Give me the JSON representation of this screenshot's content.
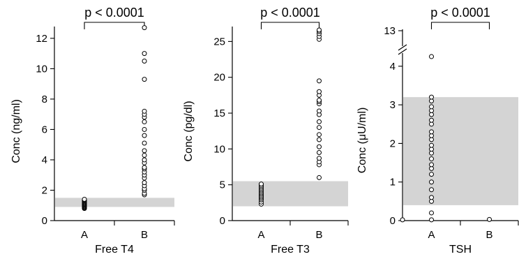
{
  "chart_data": [
    {
      "type": "scatter",
      "xlabel": "Free T4",
      "ylabel": "Conc (ng/ml)",
      "categories": [
        "A",
        "B"
      ],
      "annotation": "p < 0.0001",
      "ylim": [
        0,
        12.5
      ],
      "yticks": [
        0,
        2,
        4,
        6,
        8,
        10,
        12
      ],
      "ytick_labels": [
        "0",
        "2",
        "4",
        "6",
        "8",
        "10",
        "12"
      ],
      "reference_range": [
        0.9,
        1.5
      ],
      "series": [
        {
          "category": "A",
          "values": [
            0.8,
            0.85,
            0.9,
            0.95,
            1.0,
            1.05,
            1.1,
            1.15,
            1.2,
            1.25,
            1.3,
            1.35,
            1.4
          ]
        },
        {
          "category": "B",
          "values": [
            1.7,
            1.8,
            2.0,
            2.1,
            2.3,
            2.5,
            2.8,
            3.0,
            3.2,
            3.4,
            3.5,
            3.8,
            4.0,
            4.3,
            4.6,
            5.1,
            5.6,
            6.0,
            6.5,
            6.8,
            7.0,
            7.2,
            9.3,
            10.5,
            11.0,
            12.7
          ]
        }
      ]
    },
    {
      "type": "scatter",
      "xlabel": "Free T3",
      "ylabel": "Conc (pg/dl)",
      "categories": [
        "A",
        "B"
      ],
      "annotation": "p < 0.0001",
      "ylim": [
        0,
        26.5
      ],
      "yticks": [
        0,
        5,
        10,
        15,
        20,
        25
      ],
      "ytick_labels": [
        "0",
        "5",
        "10",
        "15",
        "20",
        "25"
      ],
      "reference_range": [
        2.0,
        5.5
      ],
      "series": [
        {
          "category": "A",
          "values": [
            2.3,
            2.6,
            2.9,
            3.1,
            3.3,
            3.5,
            3.7,
            3.9,
            4.1,
            4.3,
            4.5,
            4.7,
            4.9,
            5.1
          ]
        },
        {
          "category": "B",
          "values": [
            6.0,
            7.8,
            8.2,
            8.7,
            9.5,
            10.3,
            11.3,
            12.0,
            13.0,
            13.8,
            14.8,
            15.3,
            16.3,
            16.6,
            16.8,
            17.5,
            18.0,
            19.5,
            25.3,
            25.7,
            26.1,
            26.4,
            26.6
          ]
        }
      ]
    },
    {
      "type": "scatter",
      "xlabel": "TSH",
      "ylabel": "Conc (μU/ml)",
      "categories": [
        "A",
        "B"
      ],
      "annotation": "p < 0.0001",
      "ylim": [
        0,
        4.45
      ],
      "axis_break": true,
      "upper_tick_label": "13",
      "yticks": [
        0,
        1,
        2,
        3,
        4
      ],
      "ytick_labels": [
        "0",
        "1",
        "2",
        "3",
        "4"
      ],
      "reference_range": [
        0.4,
        3.2
      ],
      "series": [
        {
          "category": "A",
          "values": [
            0.02,
            0.2,
            0.5,
            0.6,
            0.8,
            1.0,
            1.2,
            1.35,
            1.45,
            1.6,
            1.75,
            1.85,
            1.95,
            2.1,
            2.2,
            2.3,
            2.5,
            2.6,
            2.75,
            2.85,
            2.95,
            3.1,
            3.2,
            4.25
          ]
        },
        {
          "category": "B",
          "values": [
            0.03
          ]
        },
        {
          "category": "origin",
          "values": [
            0.02
          ]
        }
      ]
    }
  ]
}
